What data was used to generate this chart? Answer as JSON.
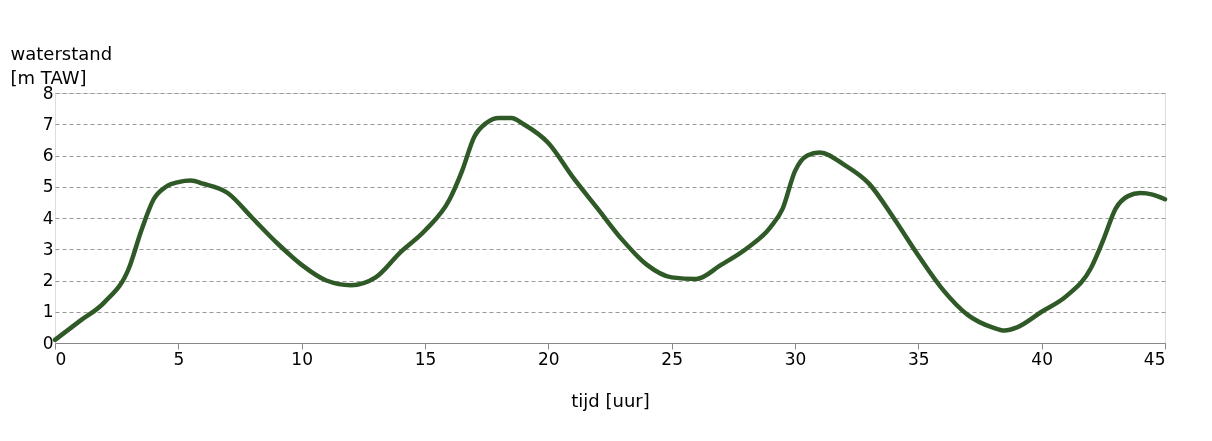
{
  "chart_data": {
    "type": "line",
    "xlabel": "tijd [uur]",
    "ylabel": "waterstand\n[m TAW]",
    "x": [
      0,
      1,
      2,
      3,
      3.5,
      4,
      4.5,
      5,
      5.5,
      6,
      7,
      8,
      9,
      10,
      11,
      12,
      13,
      14,
      15,
      16,
      16.5,
      17,
      17.5,
      18,
      18.5,
      19,
      20,
      21,
      22,
      23,
      24,
      25,
      26,
      27,
      28,
      29,
      29.5,
      30,
      30.5,
      31,
      32,
      33,
      34,
      35,
      36,
      37,
      38,
      38.5,
      39,
      40,
      41,
      42,
      42.5,
      43,
      43.5,
      44,
      44.5,
      45
    ],
    "series": [
      {
        "color": "#2f5a27",
        "values": [
          0.1,
          0.7,
          1.3,
          2.4,
          3.6,
          4.6,
          5.0,
          5.15,
          5.2,
          5.1,
          4.8,
          4.0,
          3.2,
          2.5,
          2.0,
          1.85,
          2.1,
          2.9,
          3.6,
          4.6,
          5.5,
          6.6,
          7.05,
          7.2,
          7.2,
          7.0,
          6.4,
          5.3,
          4.3,
          3.3,
          2.5,
          2.1,
          2.05,
          2.5,
          3.0,
          3.7,
          4.3,
          5.5,
          6.0,
          6.1,
          5.7,
          5.1,
          4.0,
          2.8,
          1.7,
          0.9,
          0.5,
          0.4,
          0.5,
          1.0,
          1.5,
          2.4,
          3.3,
          4.3,
          4.7,
          4.8,
          4.75,
          4.6
        ]
      }
    ],
    "xlim": [
      0,
      45
    ],
    "xticks": [
      0,
      5,
      10,
      15,
      20,
      25,
      30,
      35,
      40,
      45
    ],
    "ylim": [
      0,
      8
    ],
    "yticks": [
      0,
      1,
      2,
      3,
      4,
      5,
      6,
      7,
      8
    ],
    "grid": "y",
    "marker": "none",
    "line_style": "solid"
  }
}
